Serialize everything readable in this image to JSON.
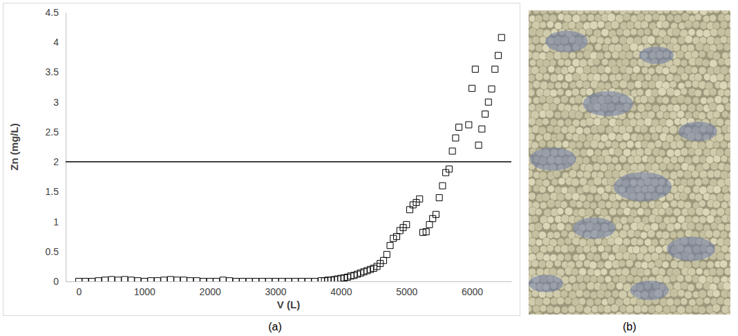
{
  "chart_data": {
    "type": "scatter",
    "panel_label": "(a)",
    "x_label": "V (L)",
    "y_label": "Zn (mg/L)",
    "marker": "square",
    "color": "#000000",
    "grid": false,
    "reference_line": 2,
    "xlim": [
      -200,
      6600
    ],
    "ylim": [
      0,
      4.5
    ],
    "xticks": [
      0,
      1000,
      2000,
      3000,
      4000,
      5000,
      6000
    ],
    "yticks": [
      0,
      0.5,
      1,
      1.5,
      2,
      2.5,
      3,
      3.5,
      4,
      4.5
    ],
    "x": [
      0,
      100,
      200,
      300,
      400,
      500,
      600,
      700,
      800,
      900,
      1000,
      1100,
      1200,
      1300,
      1400,
      1500,
      1600,
      1700,
      1800,
      1900,
      2000,
      2100,
      2200,
      2300,
      2400,
      2500,
      2600,
      2700,
      2800,
      2900,
      3000,
      3100,
      3200,
      3300,
      3400,
      3500,
      3600,
      3700,
      3750,
      3800,
      3850,
      3900,
      3950,
      4000,
      4050,
      4100,
      4150,
      4200,
      4250,
      4300,
      4350,
      4400,
      4450,
      4500,
      4550,
      4600,
      4650,
      4700,
      4750,
      4800,
      4850,
      4900,
      4950,
      5000,
      5050,
      5100,
      5150,
      5200,
      5250,
      5300,
      5350,
      5400,
      5450,
      5500,
      5550,
      5600,
      5650,
      5700,
      5750,
      5800,
      5950,
      6000,
      6050,
      6100,
      6150,
      6200,
      6250,
      6300,
      6350,
      6400,
      6450
    ],
    "values": [
      0,
      0,
      0,
      0.01,
      0.02,
      0.03,
      0.02,
      0.03,
      0.02,
      0.01,
      0,
      0.01,
      0.01,
      0.02,
      0.03,
      0.02,
      0.02,
      0.01,
      0.01,
      0,
      0,
      0,
      0.02,
      0.01,
      0,
      0,
      0,
      0,
      0,
      0,
      0,
      0,
      0,
      0,
      0,
      0,
      0,
      0.01,
      0.01,
      0.02,
      0.02,
      0.03,
      0.04,
      0.05,
      0.06,
      0.07,
      0.09,
      0.1,
      0.12,
      0.14,
      0.16,
      0.18,
      0.2,
      0.22,
      0.25,
      0.3,
      0.35,
      0.45,
      0.6,
      0.72,
      0.75,
      0.85,
      0.9,
      0.95,
      1.2,
      1.28,
      1.32,
      1.38,
      0.82,
      0.83,
      0.95,
      1.05,
      1.12,
      1.4,
      1.6,
      1.82,
      1.88,
      2.18,
      2.4,
      2.58,
      2.62,
      3.23,
      3.55,
      2.28,
      2.55,
      2.8,
      3.0,
      3.22,
      3.55,
      3.78,
      4.08
    ]
  },
  "photo": {
    "panel_label": "(b)"
  }
}
